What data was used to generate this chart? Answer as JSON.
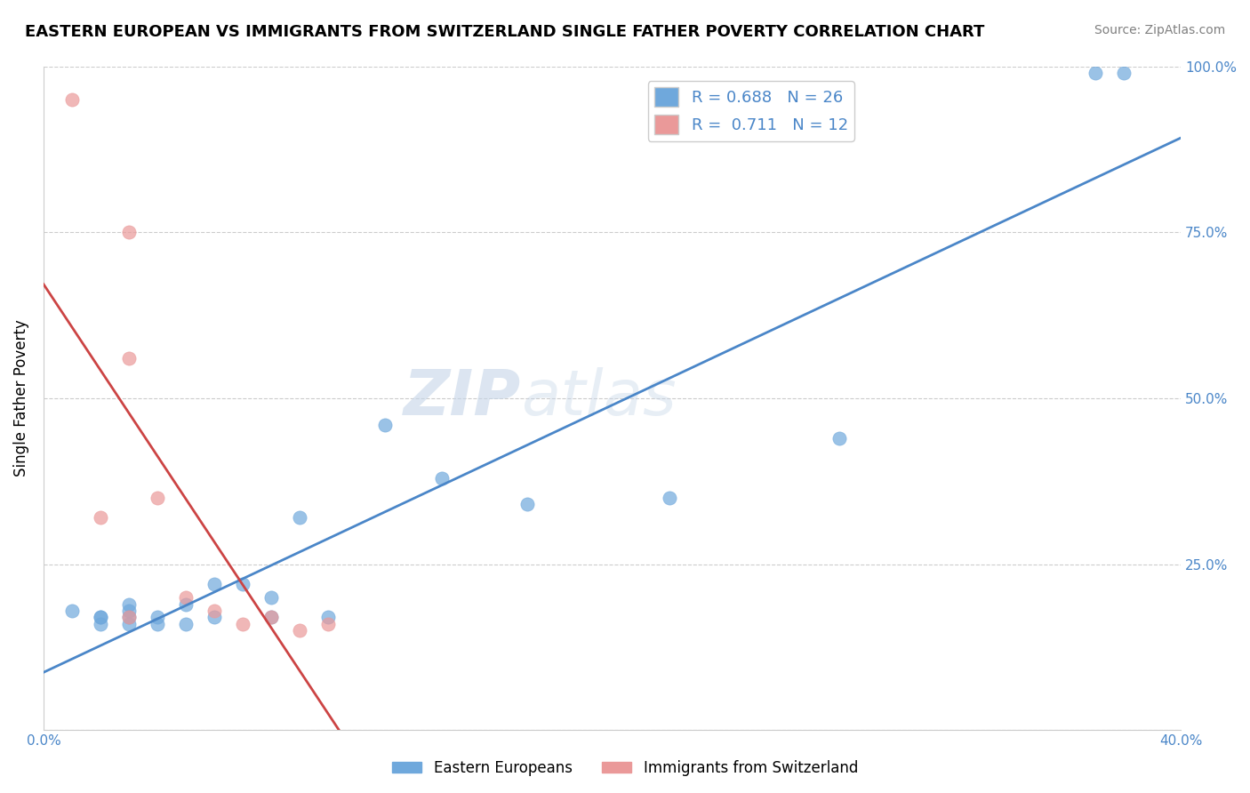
{
  "title": "EASTERN EUROPEAN VS IMMIGRANTS FROM SWITZERLAND SINGLE FATHER POVERTY CORRELATION CHART",
  "source": "Source: ZipAtlas.com",
  "ylabel": "Single Father Poverty",
  "legend_bottom": [
    "Eastern Europeans",
    "Immigrants from Switzerland"
  ],
  "xlim": [
    0.0,
    0.4
  ],
  "ylim": [
    0.0,
    1.0
  ],
  "blue_R": 0.688,
  "blue_N": 26,
  "pink_R": 0.711,
  "pink_N": 12,
  "blue_color": "#6fa8dc",
  "pink_color": "#ea9999",
  "blue_line_color": "#4a86c8",
  "pink_line_color": "#cc4444",
  "blue_scatter_x": [
    0.01,
    0.02,
    0.02,
    0.02,
    0.03,
    0.03,
    0.03,
    0.03,
    0.04,
    0.04,
    0.05,
    0.05,
    0.06,
    0.06,
    0.07,
    0.08,
    0.08,
    0.09,
    0.1,
    0.12,
    0.14,
    0.17,
    0.22,
    0.28,
    0.37,
    0.38
  ],
  "blue_scatter_y": [
    0.18,
    0.17,
    0.17,
    0.16,
    0.18,
    0.19,
    0.17,
    0.16,
    0.17,
    0.16,
    0.19,
    0.16,
    0.22,
    0.17,
    0.22,
    0.2,
    0.17,
    0.32,
    0.17,
    0.46,
    0.38,
    0.34,
    0.35,
    0.44,
    0.99,
    0.99
  ],
  "pink_scatter_x": [
    0.01,
    0.02,
    0.03,
    0.03,
    0.03,
    0.04,
    0.05,
    0.06,
    0.07,
    0.08,
    0.09,
    0.1
  ],
  "pink_scatter_y": [
    0.95,
    0.32,
    0.56,
    0.75,
    0.17,
    0.35,
    0.2,
    0.18,
    0.16,
    0.17,
    0.15,
    0.16
  ],
  "grid_color": "#cccccc",
  "bg_color": "#ffffff"
}
